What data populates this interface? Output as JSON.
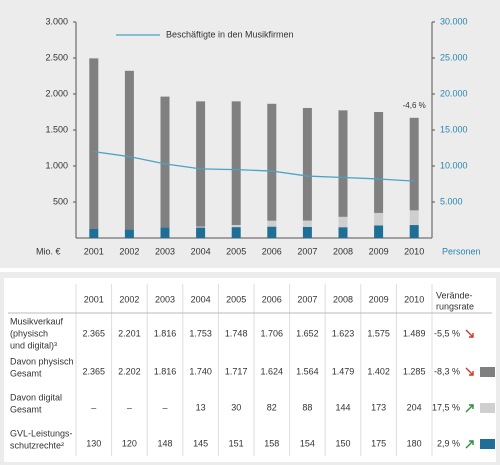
{
  "chart_data": {
    "type": "bar",
    "categories": [
      "2001",
      "2002",
      "2003",
      "2004",
      "2005",
      "2006",
      "2007",
      "2008",
      "2009",
      "2010"
    ],
    "series": [
      {
        "color": "#1f6e96",
        "values": [
          130,
          120,
          148,
          145,
          151,
          158,
          154,
          150,
          175,
          180
        ]
      },
      {
        "color": "#cfcfcf",
        "values": [
          null,
          null,
          null,
          13,
          30,
          82,
          88,
          144,
          173,
          204
        ]
      },
      {
        "color": "#808080",
        "values": [
          2365,
          2202,
          1816,
          1740,
          1717,
          1624,
          1564,
          1479,
          1402,
          1285
        ]
      },
      {
        "name": "Beschäftigte in den Musikfirmen",
        "color": "#4aa3c4",
        "axis": "y2",
        "values": [
          12000,
          11300,
          10300,
          9600,
          9500,
          9300,
          8600,
          8400,
          8200,
          7900
        ]
      }
    ],
    "ylim": [
      0,
      3000
    ],
    "yticks": [
      {
        "value": 500,
        "label": "500"
      },
      {
        "value": 1000,
        "label": "1.000"
      },
      {
        "value": 1500,
        "label": "1.500"
      },
      {
        "value": 2000,
        "label": "2.000"
      },
      {
        "value": 2500,
        "label": "2.500"
      },
      {
        "value": 3000,
        "label": "3.000"
      }
    ],
    "y2lim": [
      0,
      30000
    ],
    "y2ticks": [
      {
        "value": 5000,
        "label": "5.000"
      },
      {
        "value": 10000,
        "label": "10.000"
      },
      {
        "value": 15000,
        "label": "15.000"
      },
      {
        "value": 20000,
        "label": "20.000"
      },
      {
        "value": 25000,
        "label": "25.000"
      },
      {
        "value": 30000,
        "label": "30.000"
      }
    ],
    "y_label": "Mio. €",
    "y2_label": "Personen",
    "annotation": "-4,6 %"
  },
  "table": {
    "header": [
      "2001",
      "2002",
      "2003",
      "2004",
      "2005",
      "2006",
      "2007",
      "2008",
      "2009",
      "2010"
    ],
    "rate_header": [
      "Verände-",
      "rungsrate"
    ],
    "rows": [
      {
        "label": [
          "Musikverkauf",
          "(physisch",
          "und digital)³"
        ],
        "values": [
          "2.365",
          "2.201",
          "1.816",
          "1.753",
          "1.748",
          "1.706",
          "1.652",
          "1.623",
          "1.575",
          "1.489"
        ],
        "rate": "-5,5 %",
        "trend": "down"
      },
      {
        "label": [
          "Davon physisch",
          "Gesamt"
        ],
        "values": [
          "2.365",
          "2.202",
          "1.816",
          "1.740",
          "1.717",
          "1.624",
          "1.564",
          "1.479",
          "1.402",
          "1.285"
        ],
        "rate": "-8,3 %",
        "trend": "down",
        "color": "#808080"
      },
      {
        "label": [
          "Davon digital",
          "Gesamt"
        ],
        "values": [
          "–",
          "–",
          "–",
          "13",
          "30",
          "82",
          "88",
          "144",
          "173",
          "204"
        ],
        "rate": "17,5 %",
        "trend": "up",
        "color": "#cfcfcf"
      },
      {
        "label": [
          "GVL-Leistungs-",
          "schutzrechte²"
        ],
        "values": [
          "130",
          "120",
          "148",
          "145",
          "151",
          "158",
          "154",
          "150",
          "175",
          "180"
        ],
        "rate": "2,9 %",
        "trend": "up",
        "color": "#1f6e96"
      }
    ]
  }
}
